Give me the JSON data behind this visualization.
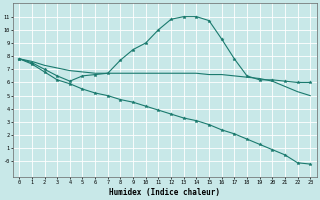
{
  "xlabel": "Humidex (Indice chaleur)",
  "background_color": "#c8e8e8",
  "grid_color": "#ffffff",
  "line_color": "#1a7a6e",
  "xlim": [
    -0.5,
    23.5
  ],
  "ylim": [
    -1.2,
    12.0
  ],
  "xticks": [
    0,
    1,
    2,
    3,
    4,
    5,
    6,
    7,
    8,
    9,
    10,
    11,
    12,
    13,
    14,
    15,
    16,
    17,
    18,
    19,
    20,
    21,
    22,
    23
  ],
  "yticks": [
    0,
    1,
    2,
    3,
    4,
    5,
    6,
    7,
    8,
    9,
    10,
    11
  ],
  "ytick_labels": [
    "-0",
    "1",
    "2",
    "3",
    "4",
    "5",
    "6",
    "7",
    "8",
    "9",
    "10",
    "11"
  ],
  "lines": [
    {
      "x": [
        0,
        1,
        2,
        3,
        4,
        5,
        6,
        7,
        8,
        9,
        10,
        11,
        12,
        13,
        14,
        15,
        16,
        17,
        18,
        19,
        20,
        21,
        22,
        23
      ],
      "y": [
        7.8,
        7.5,
        7.0,
        6.5,
        6.1,
        6.5,
        6.6,
        6.7,
        7.7,
        8.5,
        9.0,
        10.0,
        10.8,
        11.0,
        11.0,
        10.7,
        9.3,
        7.8,
        6.5,
        6.2,
        6.2,
        6.1,
        6.0,
        6.0
      ],
      "marker": true
    },
    {
      "x": [
        0,
        1,
        2,
        3,
        4,
        5,
        6,
        7,
        8,
        9,
        10,
        11,
        12,
        13,
        14,
        15,
        16,
        17,
        18,
        19,
        20,
        21,
        22,
        23
      ],
      "y": [
        7.8,
        7.6,
        7.3,
        7.1,
        6.9,
        6.8,
        6.7,
        6.7,
        6.7,
        6.7,
        6.7,
        6.7,
        6.7,
        6.7,
        6.7,
        6.6,
        6.6,
        6.5,
        6.4,
        6.3,
        6.1,
        5.7,
        5.3,
        5.0
      ],
      "marker": false
    },
    {
      "x": [
        0,
        1,
        2,
        3,
        4,
        5,
        6,
        7,
        8,
        9,
        10,
        11,
        12,
        13,
        14,
        15,
        16,
        17,
        18,
        19,
        20,
        21,
        22,
        23
      ],
      "y": [
        7.8,
        7.4,
        6.8,
        6.2,
        5.9,
        5.5,
        5.2,
        5.0,
        4.7,
        4.5,
        4.2,
        3.9,
        3.6,
        3.3,
        3.1,
        2.8,
        2.4,
        2.1,
        1.7,
        1.3,
        0.9,
        0.5,
        -0.1,
        -0.2
      ],
      "marker": true
    }
  ]
}
